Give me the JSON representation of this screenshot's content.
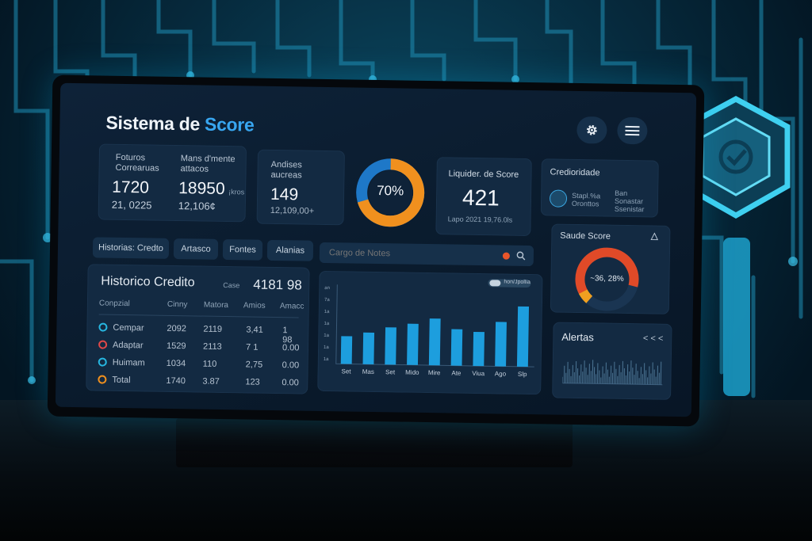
{
  "app": {
    "title_part1": "Sistema de ",
    "title_part2": "Score"
  },
  "toolbar": {
    "settings_icon": "gear-icon",
    "menu_icon": "hamburger-icon"
  },
  "kpi1": {
    "label1": "Foturos",
    "label2": "Correaruas",
    "value": "1720",
    "sub": "21, 0225"
  },
  "kpi2": {
    "label1": "Mans d'mente",
    "label2": "attacos",
    "value": "18950",
    "unit": "¡kros",
    "sub": "12,106¢"
  },
  "kpi3": {
    "label1": "Andises",
    "label2": "aucreas",
    "value": "149",
    "sub": "12,109,00+"
  },
  "donut_main": {
    "label": "70%",
    "fraction": 0.7,
    "color_a": "#f0901e",
    "color_b": "#2188d8"
  },
  "score": {
    "label": "Liquider. de Score",
    "value": "421",
    "sub": "Lapo 2021 19,76.0ls"
  },
  "credito": {
    "title": "Credioridade",
    "row1a": "Stapl.%a",
    "row1b": "Oronttos",
    "row2a": "Ban",
    "row2b": "Sonastar",
    "row2c": "Ssenistar"
  },
  "tabs": [
    "Historias: Credto",
    "Artasco",
    "Fontes",
    "Alanias"
  ],
  "search": {
    "placeholder": "Cargo de Notes"
  },
  "historico": {
    "title": "Historico Credito",
    "case_label": "Case",
    "case_value": "4181 98",
    "headers": [
      "Conpzial",
      "Cinny",
      "Matora",
      "Amios",
      "Amacc"
    ],
    "rows": [
      {
        "name": "Cempar",
        "c1": "2092",
        "c2": "2119",
        "c3": "3,41",
        "c4": "1 98",
        "color": "#27b6e0"
      },
      {
        "name": "Adaptar",
        "c1": "1529",
        "c2": "2113",
        "c3": "7 1",
        "c4": "0.00",
        "color": "#e04848"
      },
      {
        "name": "Huimam",
        "c1": "1034",
        "c2": "110",
        "c3": "2,75",
        "c4": "0.00",
        "color": "#27b6e0"
      },
      {
        "name": "Total",
        "c1": "1740",
        "c2": "3.87",
        "c3": "123",
        "c4": "0.00",
        "color": "#f0901e"
      }
    ]
  },
  "chart_data": {
    "type": "bar",
    "toggle_label": "hon/Jpollia",
    "categories": [
      "Set",
      "Mas",
      "Set",
      "Mido",
      "Mire",
      "Ate",
      "Viua",
      "Ago",
      "Slp"
    ],
    "values": [
      35,
      40,
      47,
      52,
      59,
      46,
      43,
      56,
      76
    ],
    "ylim": [
      0,
      100
    ],
    "y_ticks": [
      "an",
      "7a",
      "1a",
      "1a",
      "1a",
      "1a",
      "1a"
    ]
  },
  "saude": {
    "title": "Saude Score",
    "label": "~36, 28%",
    "fraction": 0.62,
    "alert_icon": "warning-icon"
  },
  "alertas": {
    "title": "Alertas",
    "nav": "< < <"
  }
}
